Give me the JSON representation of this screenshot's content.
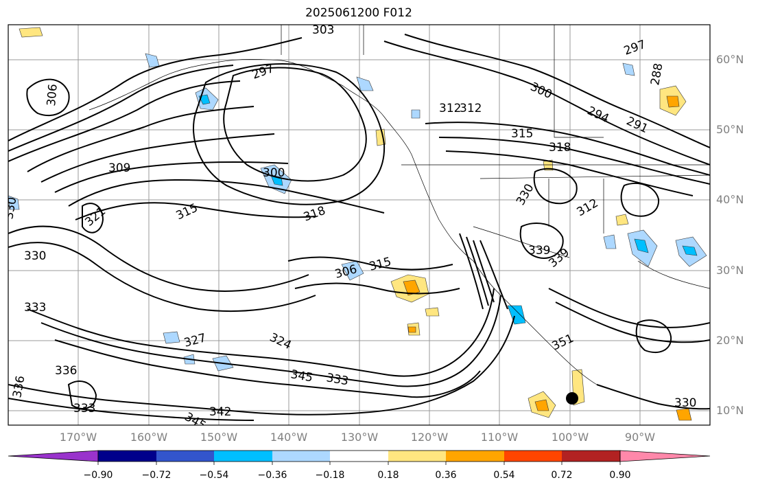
{
  "title": "2025061200 F012",
  "lat_labels": [
    "60°N",
    "50°N",
    "40°N",
    "30°N",
    "20°N",
    "10°N"
  ],
  "lon_labels": [
    "170°W",
    "160°W",
    "150°W",
    "140°W",
    "130°W",
    "120°W",
    "110°W",
    "100°W",
    "90°W"
  ],
  "colorbar": {
    "ticks": [
      "−0.90",
      "−0.72",
      "−0.54",
      "−0.36",
      "−0.18",
      "0.18",
      "0.36",
      "0.54",
      "0.72",
      "0.90"
    ],
    "colors": [
      "#9933cc",
      "#00008b",
      "#3355cc",
      "#00bfff",
      "#add8ff",
      "#ffffff",
      "#ffe680",
      "#ffa500",
      "#ff4500",
      "#b22222",
      "#ff88aa"
    ]
  },
  "contour_labels": [
    "303",
    "297",
    "306",
    "309",
    "300",
    "312",
    "315",
    "318",
    "321",
    "330",
    "333",
    "336",
    "339",
    "327",
    "324",
    "342",
    "345",
    "351",
    "294",
    "291",
    "288",
    "297",
    "300",
    "312",
    "315",
    "318",
    "306",
    "315",
    "312",
    "330",
    "339",
    "333",
    "330",
    "345",
    "333",
    "330",
    "336"
  ],
  "shading_colors": {
    "neg_light": "#add8ff",
    "neg_mid": "#00bfff",
    "pos_light": "#ffe680",
    "pos_mid": "#ffa500"
  }
}
